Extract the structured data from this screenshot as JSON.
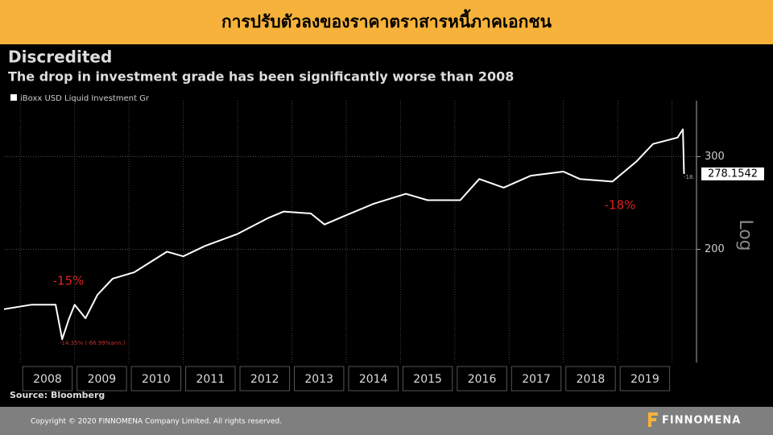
{
  "slide_title": "การปรับตัวลงของราคาตราสารหนี้ภาคเอกชน",
  "chart_data": {
    "type": "line",
    "title": "Discredited",
    "subtitle": "The drop in investment grade has been significantly worse than 2008",
    "series": [
      {
        "name": "iBoxx USD Liquid Investment Gr",
        "color": "#ffffff",
        "x": [
          2007.7,
          2008.2,
          2008.65,
          2008.77,
          2008.9,
          2009.0,
          2009.2,
          2009.42,
          2009.7,
          2010.1,
          2010.7,
          2011.0,
          2011.4,
          2012.0,
          2012.55,
          2012.85,
          2013.35,
          2013.6,
          2013.95,
          2014.5,
          2015.1,
          2015.5,
          2016.1,
          2016.45,
          2016.9,
          2017.4,
          2018.0,
          2018.3,
          2018.9,
          2019.35,
          2019.65,
          2020.1,
          2020.2,
          2020.22
        ],
        "values": [
          154,
          157,
          157,
          135,
          148,
          157,
          148,
          164,
          176,
          181,
          198,
          194,
          203,
          214,
          229,
          236,
          234,
          223,
          231,
          244,
          255,
          248,
          248,
          272,
          262,
          276,
          281,
          272,
          269,
          294,
          317,
          326,
          338,
          278.1542
        ]
      }
    ],
    "last_label": "278.1542",
    "xlim": [
      2007.7,
      2020.45
    ],
    "xticks": [
      {
        "value": 2008.5,
        "label": "2008"
      },
      {
        "value": 2009.5,
        "label": "2009"
      },
      {
        "value": 2010.5,
        "label": "2010"
      },
      {
        "value": 2011.5,
        "label": "2011"
      },
      {
        "value": 2012.5,
        "label": "2012"
      },
      {
        "value": 2013.5,
        "label": "2013"
      },
      {
        "value": 2014.5,
        "label": "2014"
      },
      {
        "value": 2015.5,
        "label": "2015"
      },
      {
        "value": 2016.5,
        "label": "2016"
      },
      {
        "value": 2017.5,
        "label": "2017"
      },
      {
        "value": 2018.5,
        "label": "2018"
      },
      {
        "value": 2019.5,
        "label": "2019"
      }
    ],
    "ylim": [
      122,
      383
    ],
    "yticks": [
      200,
      300
    ],
    "log_scale": true,
    "scale_label": "Log",
    "annotations": [
      "-15%",
      "-18%",
      "-14.35% (-66.99%ann.)",
      "-18."
    ],
    "source": "Source: Bloomberg"
  },
  "footer": {
    "copyright": "Copyright © 2020 FINNOMENA Company Limited. All rights reserved.",
    "logo": "FINNOMENA"
  }
}
